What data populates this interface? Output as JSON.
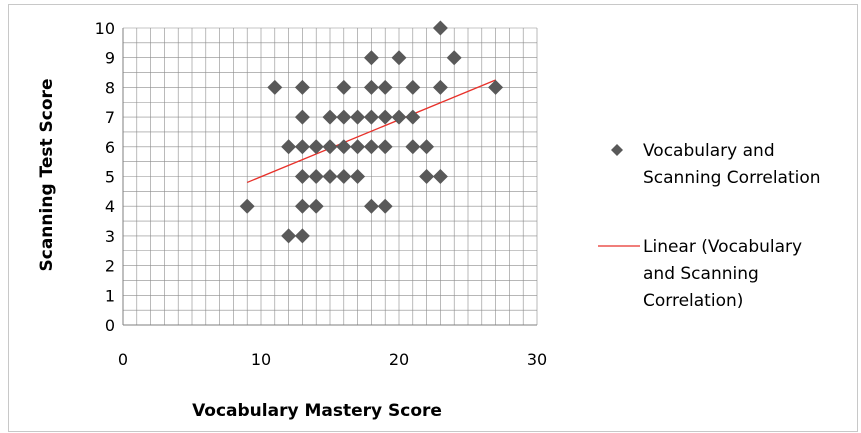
{
  "chart_data": {
    "type": "scatter",
    "xlabel": "Vocabulary Mastery Score",
    "ylabel": "Scanning Test Score",
    "xlim": [
      0,
      30
    ],
    "ylim": [
      0,
      10
    ],
    "xticks": [
      "0",
      "10",
      "20",
      "30"
    ],
    "yticks": [
      "0",
      "1",
      "2",
      "3",
      "4",
      "5",
      "6",
      "7",
      "8",
      "9",
      "10"
    ],
    "grid": true,
    "legend_position": "right",
    "series": [
      {
        "name": "Vocabulary and Scanning Correlation",
        "legend_lines": [
          "Vocabulary and",
          "Scanning Correlation"
        ],
        "marker": "diamond",
        "color": "#595959",
        "points": [
          [
            23,
            10
          ],
          [
            18,
            9
          ],
          [
            20,
            9
          ],
          [
            24,
            9
          ],
          [
            11,
            8
          ],
          [
            13,
            8
          ],
          [
            16,
            8
          ],
          [
            18,
            8
          ],
          [
            19,
            8
          ],
          [
            21,
            8
          ],
          [
            23,
            8
          ],
          [
            27,
            8
          ],
          [
            13,
            7
          ],
          [
            15,
            7
          ],
          [
            16,
            7
          ],
          [
            17,
            7
          ],
          [
            18,
            7
          ],
          [
            19,
            7
          ],
          [
            20,
            7
          ],
          [
            21,
            7
          ],
          [
            12,
            6
          ],
          [
            13,
            6
          ],
          [
            14,
            6
          ],
          [
            15,
            6
          ],
          [
            16,
            6
          ],
          [
            17,
            6
          ],
          [
            18,
            6
          ],
          [
            19,
            6
          ],
          [
            21,
            6
          ],
          [
            22,
            6
          ],
          [
            13,
            5
          ],
          [
            14,
            5
          ],
          [
            15,
            5
          ],
          [
            16,
            5
          ],
          [
            17,
            5
          ],
          [
            22,
            5
          ],
          [
            23,
            5
          ],
          [
            9,
            4
          ],
          [
            13,
            4
          ],
          [
            14,
            4
          ],
          [
            18,
            4
          ],
          [
            19,
            4
          ],
          [
            12,
            3
          ],
          [
            13,
            3
          ]
        ]
      },
      {
        "name": "Linear (Vocabulary and Scanning Correlation)",
        "legend_lines": [
          "Linear (Vocabulary",
          "and Scanning",
          "Correlation)"
        ],
        "type": "line",
        "color": "#e8312a",
        "x": [
          9,
          27
        ],
        "y": [
          4.8,
          8.25
        ]
      }
    ]
  }
}
